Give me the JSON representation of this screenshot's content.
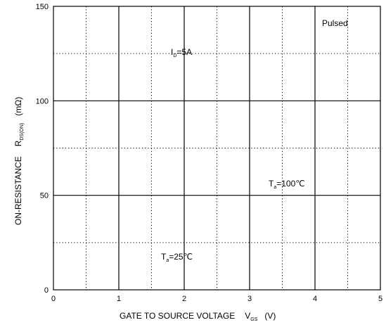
{
  "chart_data": {
    "type": "line",
    "x": [
      0,
      1,
      2,
      3,
      4,
      5
    ],
    "xlim": [
      0,
      5
    ],
    "ylim": [
      0,
      150
    ],
    "x_ticks": [
      "0",
      "1",
      "2",
      "3",
      "4",
      "5"
    ],
    "y_ticks": [
      "0",
      "50",
      "100",
      "150"
    ],
    "xlabel": {
      "main": "GATE TO SOURCE VOLTAGE",
      "symbol": "V",
      "subscript": "GS",
      "unit": "(V)"
    },
    "ylabel": {
      "main": "ON-RESISTANCE",
      "symbol": "R",
      "subscript": "DS(ON)",
      "unit": "(mΩ)"
    },
    "grid": {
      "major": "solid",
      "minor": "dotted"
    },
    "annotations": {
      "condition": "Pulsed",
      "current": {
        "symbol": "I",
        "subscript": "D",
        "value": "=5A"
      },
      "temp_high": {
        "symbol": "T",
        "subscript": "a",
        "value": "=100℃"
      },
      "temp_low": {
        "symbol": "T",
        "subscript": "a",
        "value": "=25℃"
      }
    }
  }
}
